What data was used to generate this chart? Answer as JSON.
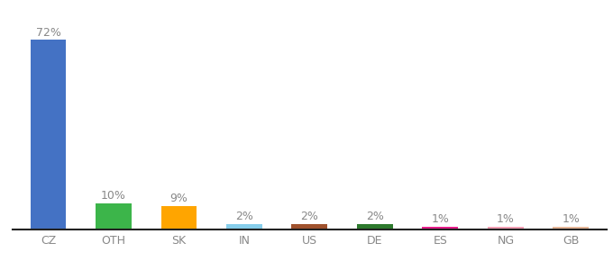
{
  "categories": [
    "CZ",
    "OTH",
    "SK",
    "IN",
    "US",
    "DE",
    "ES",
    "NG",
    "GB"
  ],
  "values": [
    72,
    10,
    9,
    2,
    2,
    2,
    1,
    1,
    1
  ],
  "labels": [
    "72%",
    "10%",
    "9%",
    "2%",
    "2%",
    "2%",
    "1%",
    "1%",
    "1%"
  ],
  "bar_colors": [
    "#4472C4",
    "#3CB54A",
    "#FFA500",
    "#87CEEB",
    "#A0522D",
    "#2D7A2D",
    "#E91E8C",
    "#F4A0B5",
    "#E8B89A"
  ],
  "ylim": [
    0,
    80
  ],
  "background_color": "#ffffff",
  "label_fontsize": 9,
  "tick_fontsize": 9,
  "label_color": "#888888"
}
